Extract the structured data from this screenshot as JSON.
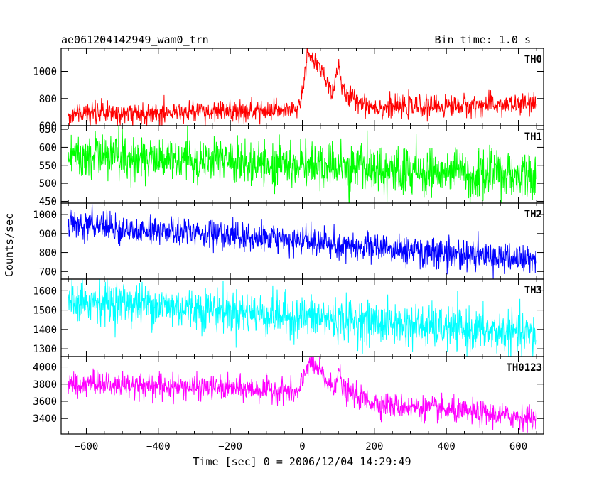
{
  "chart_data": {
    "type": "line",
    "title": "ae061204142949_wam0_trn",
    "bin_time_label": "Bin time: 1.0 s",
    "xlabel": "Time [sec] 0 = 2006/12/04 14:29:49",
    "ylabel": "Counts/sec",
    "xlim": [
      -670,
      670
    ],
    "x_ticks": [
      -600,
      -400,
      -200,
      0,
      200,
      400,
      600
    ],
    "x_range": [
      -650,
      650
    ],
    "panels": [
      {
        "name": "TH0",
        "color": "#ff0000",
        "ylim": [
          600,
          1170
        ],
        "yticks": [
          600,
          800,
          1000
        ],
        "ytick_labels": [
          "600",
          "800",
          "1000"
        ],
        "baseline": [
          [
            -650,
            690
          ],
          [
            -50,
            705
          ],
          [
            0,
            720
          ],
          [
            650,
            760
          ]
        ],
        "noise": 40,
        "bursts": [
          {
            "center": 15,
            "width": 10,
            "amplitude": 300
          },
          {
            "center": 40,
            "width": 16,
            "amplitude": 250
          },
          {
            "center": 70,
            "width": 30,
            "amplitude": 110
          },
          {
            "center": 100,
            "width": 6,
            "amplitude": 210
          },
          {
            "center": 130,
            "width": 35,
            "amplitude": 70
          }
        ]
      },
      {
        "name": "TH1",
        "color": "#00ff00",
        "ylim": [
          445,
          660
        ],
        "yticks": [
          450,
          500,
          550,
          600,
          650
        ],
        "ytick_labels": [
          "450",
          "500",
          "550",
          "600",
          "650"
        ],
        "baseline": [
          [
            -650,
            578
          ],
          [
            650,
            520
          ]
        ],
        "noise": 32,
        "bursts": []
      },
      {
        "name": "TH2",
        "color": "#0000ff",
        "ylim": [
          660,
          1060
        ],
        "yticks": [
          700,
          800,
          900,
          1000
        ],
        "ytick_labels": [
          "700",
          "800",
          "900",
          "1000"
        ],
        "baseline": [
          [
            -650,
            950
          ],
          [
            650,
            760
          ]
        ],
        "noise": 38,
        "bursts": []
      },
      {
        "name": "TH3",
        "color": "#00ffff",
        "ylim": [
          1260,
          1660
        ],
        "yticks": [
          1300,
          1400,
          1500,
          1600
        ],
        "ytick_labels": [
          "1300",
          "1400",
          "1500",
          "1600"
        ],
        "baseline": [
          [
            -650,
            1560
          ],
          [
            650,
            1370
          ]
        ],
        "noise": 55,
        "bursts": []
      },
      {
        "name": "TH0123",
        "color": "#ff00ff",
        "ylim": [
          3220,
          4120
        ],
        "yticks": [
          3400,
          3600,
          3800,
          4000
        ],
        "ytick_labels": [
          "3400",
          "3600",
          "3800",
          "4000"
        ],
        "baseline": [
          [
            -650,
            3810
          ],
          [
            -50,
            3730
          ],
          [
            0,
            3650
          ],
          [
            650,
            3400
          ]
        ],
        "noise": 70,
        "bursts": [
          {
            "center": 15,
            "width": 12,
            "amplitude": 280
          },
          {
            "center": 40,
            "width": 18,
            "amplitude": 240
          },
          {
            "center": 70,
            "width": 30,
            "amplitude": 110
          },
          {
            "center": 100,
            "width": 6,
            "amplitude": 220
          },
          {
            "center": 130,
            "width": 35,
            "amplitude": 80
          }
        ]
      }
    ]
  }
}
